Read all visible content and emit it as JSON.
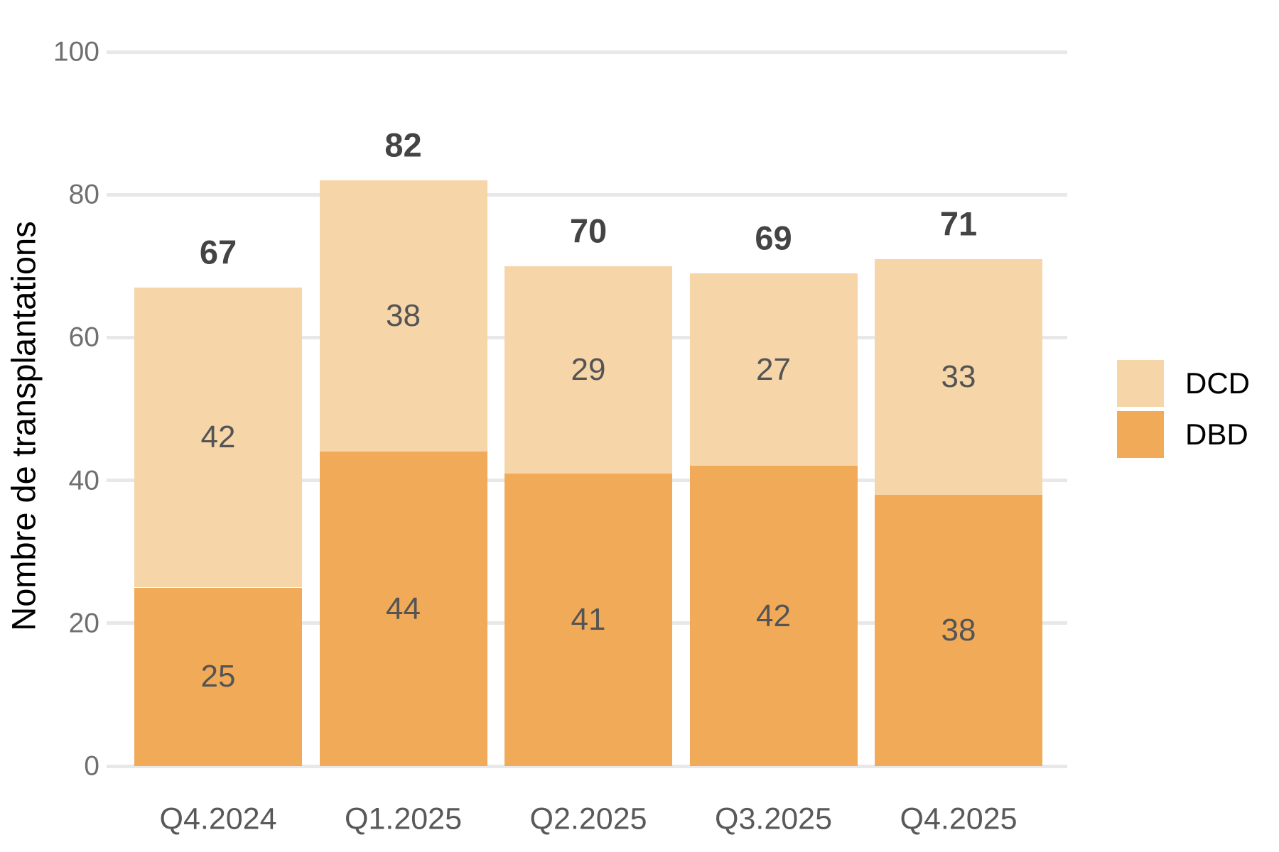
{
  "chart_data": {
    "type": "bar",
    "stacked": true,
    "title": "",
    "xlabel": "",
    "ylabel": "Nombre de transplantations",
    "categories": [
      "Q4.2024",
      "Q1.2025",
      "Q2.2025",
      "Q3.2025",
      "Q4.2025"
    ],
    "series": [
      {
        "name": "DBD",
        "color": "#F1AB58",
        "values": [
          25,
          44,
          41,
          42,
          38
        ]
      },
      {
        "name": "DCD",
        "color": "#F6D5A8",
        "values": [
          42,
          38,
          29,
          27,
          33
        ]
      }
    ],
    "totals": [
      67,
      82,
      70,
      69,
      71
    ],
    "ylim": [
      0,
      100
    ],
    "y_ticks": [
      0,
      20,
      40,
      60,
      80,
      100
    ],
    "grid": "horizontal",
    "gridline_color": "#E8E8E8",
    "legend": [
      {
        "label": "DCD",
        "color": "#F6D5A8"
      },
      {
        "label": "DBD",
        "color": "#F1AB58"
      }
    ],
    "legend_position": "right",
    "label_colors": {
      "segment_value": "#545454",
      "total": "#444444",
      "y_tick": "#6F6F6F",
      "x_tick": "#595959",
      "axis_title": "#000000",
      "legend_text": "#000000"
    }
  }
}
